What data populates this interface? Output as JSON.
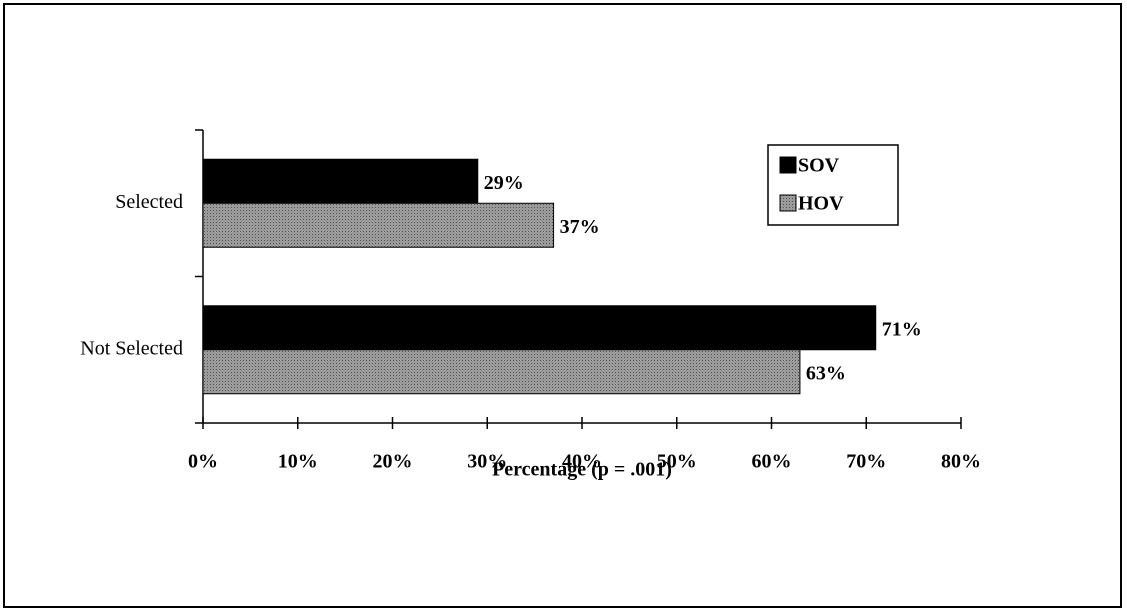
{
  "chart_data": {
    "type": "bar",
    "orientation": "horizontal",
    "categories": [
      "Selected",
      "Not Selected"
    ],
    "series": [
      {
        "name": "SOV",
        "color": "#000000",
        "values": [
          29,
          71
        ],
        "value_labels": [
          "29%",
          "71%"
        ]
      },
      {
        "name": "HOV",
        "color": "#8a8a8a",
        "values": [
          37,
          63
        ],
        "value_labels": [
          "37%",
          "63%"
        ]
      }
    ],
    "xlabel": "Percentage (p = .001)",
    "xlim": [
      0,
      80
    ],
    "xticks": [
      {
        "value": 0,
        "label": "0%"
      },
      {
        "value": 10,
        "label": "10%"
      },
      {
        "value": 20,
        "label": "20%"
      },
      {
        "value": 30,
        "label": "30%"
      },
      {
        "value": 40,
        "label": "40%"
      },
      {
        "value": 50,
        "label": "50%"
      },
      {
        "value": 60,
        "label": "60%"
      },
      {
        "value": 70,
        "label": "70%"
      },
      {
        "value": 80,
        "label": "80%"
      }
    ],
    "legend": "upper right"
  }
}
